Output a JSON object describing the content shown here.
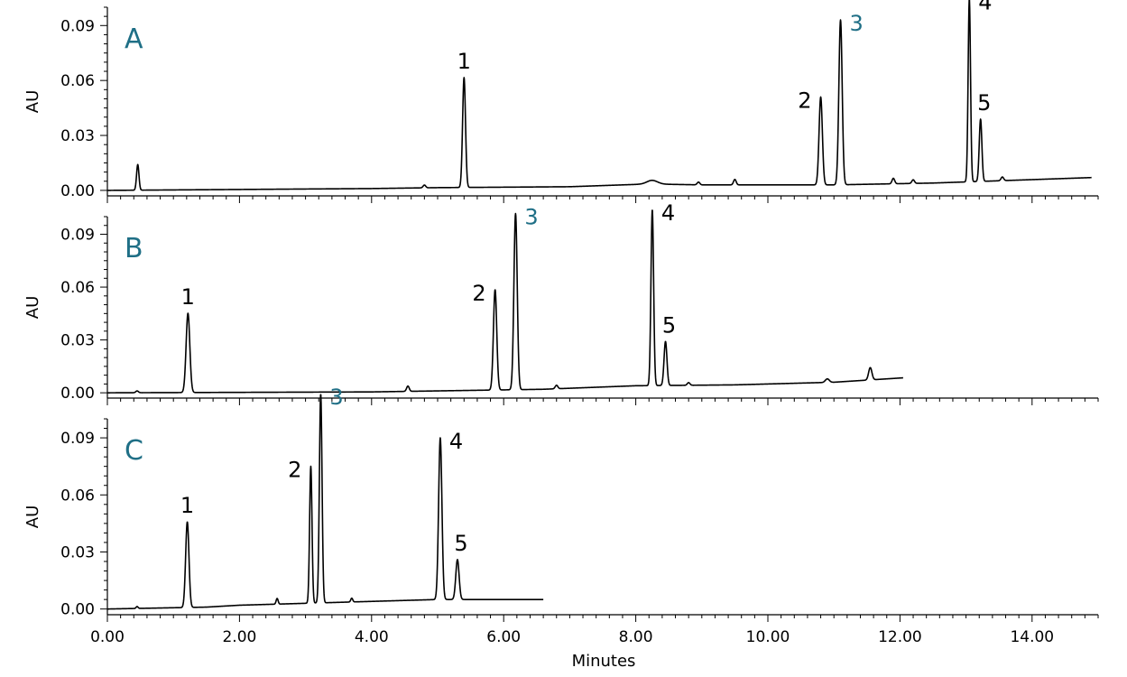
{
  "accent_color": "#1f6f86",
  "line_color": "#000000",
  "chart_data": [
    {
      "type": "line",
      "panel_letter": "A",
      "ylabel": "AU",
      "xlabel": "",
      "xlim": [
        0,
        15
      ],
      "ylim": [
        -0.003,
        0.1
      ],
      "yticks": [
        "0.00",
        "0.03",
        "0.06",
        "0.09"
      ],
      "ytick_values": [
        0,
        0.03,
        0.06,
        0.09
      ],
      "x_end": 14.9,
      "baseline": [
        [
          0,
          0.0
        ],
        [
          4,
          0.001
        ],
        [
          5.0,
          0.0015
        ],
        [
          7.0,
          0.002
        ],
        [
          8.2,
          0.0035
        ],
        [
          9.0,
          0.003
        ],
        [
          11.0,
          0.003
        ],
        [
          12.5,
          0.004
        ],
        [
          14.9,
          0.007
        ]
      ],
      "peaks": [
        {
          "x": 0.46,
          "height": 0.014,
          "width": 0.018,
          "label": ""
        },
        {
          "x": 4.8,
          "height": 0.0015,
          "width": 0.02,
          "label": ""
        },
        {
          "x": 5.4,
          "height": 0.06,
          "width": 0.022,
          "label": "1",
          "accent": false
        },
        {
          "x": 8.25,
          "height": 0.002,
          "width": 0.08,
          "label": ""
        },
        {
          "x": 8.95,
          "height": 0.0015,
          "width": 0.02,
          "label": ""
        },
        {
          "x": 9.5,
          "height": 0.003,
          "width": 0.02,
          "label": ""
        },
        {
          "x": 10.8,
          "height": 0.048,
          "width": 0.025,
          "label": "2",
          "accent": false
        },
        {
          "x": 11.1,
          "height": 0.09,
          "width": 0.025,
          "label": "3",
          "accent": true
        },
        {
          "x": 11.9,
          "height": 0.003,
          "width": 0.02,
          "label": ""
        },
        {
          "x": 12.2,
          "height": 0.002,
          "width": 0.02,
          "label": ""
        },
        {
          "x": 13.05,
          "height": 0.1,
          "width": 0.018,
          "label": "4",
          "accent": false
        },
        {
          "x": 13.22,
          "height": 0.034,
          "width": 0.02,
          "label": "5",
          "accent": false
        },
        {
          "x": 13.55,
          "height": 0.002,
          "width": 0.02,
          "label": ""
        }
      ]
    },
    {
      "type": "line",
      "panel_letter": "B",
      "ylabel": "AU",
      "xlabel": "",
      "xlim": [
        0,
        15
      ],
      "ylim": [
        -0.003,
        0.1
      ],
      "yticks": [
        "0.00",
        "0.03",
        "0.06",
        "0.09"
      ],
      "ytick_values": [
        0,
        0.03,
        0.06,
        0.09
      ],
      "x_end": 12.05,
      "baseline": [
        [
          0,
          0.0
        ],
        [
          4,
          0.0005
        ],
        [
          6.6,
          0.002
        ],
        [
          8.0,
          0.004
        ],
        [
          9.5,
          0.0045
        ],
        [
          11.0,
          0.006
        ],
        [
          12.05,
          0.0085
        ]
      ],
      "peaks": [
        {
          "x": 0.45,
          "height": 0.001,
          "width": 0.02,
          "label": ""
        },
        {
          "x": 1.22,
          "height": 0.045,
          "width": 0.028,
          "label": "1",
          "accent": false
        },
        {
          "x": 4.55,
          "height": 0.003,
          "width": 0.02,
          "label": ""
        },
        {
          "x": 5.87,
          "height": 0.057,
          "width": 0.025,
          "label": "2",
          "accent": false
        },
        {
          "x": 6.18,
          "height": 0.1,
          "width": 0.025,
          "label": "3",
          "accent": true
        },
        {
          "x": 6.8,
          "height": 0.002,
          "width": 0.02,
          "label": ""
        },
        {
          "x": 8.25,
          "height": 0.1,
          "width": 0.02,
          "label": "4",
          "accent": false
        },
        {
          "x": 8.45,
          "height": 0.025,
          "width": 0.022,
          "label": "5",
          "accent": false
        },
        {
          "x": 8.8,
          "height": 0.0015,
          "width": 0.02,
          "label": ""
        },
        {
          "x": 10.9,
          "height": 0.002,
          "width": 0.03,
          "label": ""
        },
        {
          "x": 11.55,
          "height": 0.007,
          "width": 0.025,
          "label": ""
        }
      ]
    },
    {
      "type": "line",
      "panel_letter": "C",
      "ylabel": "AU",
      "xlabel": "Minutes",
      "xlim": [
        0,
        15
      ],
      "ylim": [
        -0.003,
        0.1
      ],
      "yticks": [
        "0.00",
        "0.03",
        "0.06",
        "0.09"
      ],
      "ytick_values": [
        0,
        0.03,
        0.06,
        0.09
      ],
      "xticks": [
        "0.00",
        "2.00",
        "4.00",
        "6.00",
        "8.00",
        "10.00",
        "12.00",
        "14.00"
      ],
      "xtick_values": [
        0,
        2,
        4,
        6,
        8,
        10,
        12,
        14
      ],
      "x_end": 6.6,
      "baseline": [
        [
          0,
          0.0
        ],
        [
          1.5,
          0.001
        ],
        [
          2.0,
          0.002
        ],
        [
          3.0,
          0.003
        ],
        [
          4.0,
          0.004
        ],
        [
          5.0,
          0.005
        ],
        [
          6.6,
          0.005
        ]
      ],
      "peaks": [
        {
          "x": 0.45,
          "height": 0.001,
          "width": 0.015,
          "label": ""
        },
        {
          "x": 1.21,
          "height": 0.045,
          "width": 0.025,
          "label": "1",
          "accent": false
        },
        {
          "x": 2.57,
          "height": 0.003,
          "width": 0.015,
          "label": ""
        },
        {
          "x": 3.08,
          "height": 0.072,
          "width": 0.018,
          "label": "2",
          "accent": false
        },
        {
          "x": 3.23,
          "height": 0.11,
          "width": 0.02,
          "label": "3",
          "accent": true
        },
        {
          "x": 3.7,
          "height": 0.002,
          "width": 0.015,
          "label": ""
        },
        {
          "x": 5.04,
          "height": 0.085,
          "width": 0.025,
          "label": "4",
          "accent": false
        },
        {
          "x": 5.3,
          "height": 0.021,
          "width": 0.025,
          "label": "5",
          "accent": false
        }
      ]
    }
  ]
}
